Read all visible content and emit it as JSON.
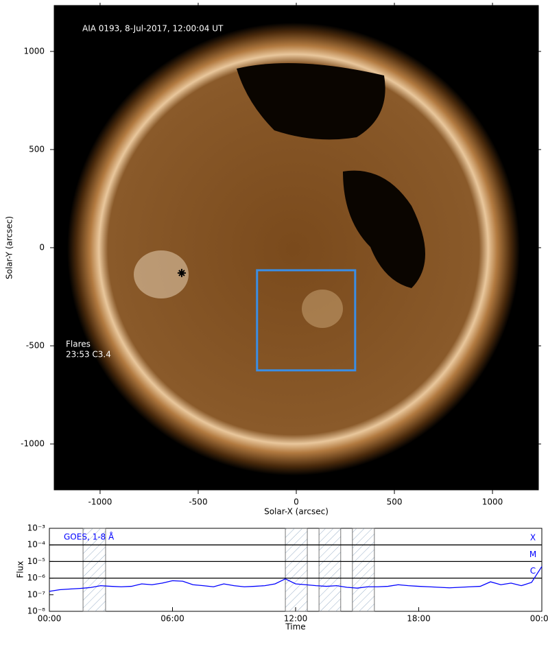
{
  "chart_data": [
    {
      "type": "image",
      "title": "AIA 0193, 8-Jul-2017, 12:00:04 UT",
      "xlabel": "Solar-X (arcsec)",
      "ylabel": "Solar-Y (arcsec)",
      "xlim": [
        -1234,
        1234
      ],
      "ylim": [
        -1234,
        1234
      ],
      "xticks": [
        -1000,
        -500,
        0,
        500,
        1000
      ],
      "yticks": [
        -1000,
        -500,
        0,
        500,
        1000
      ],
      "box": {
        "x": [
          -200,
          300
        ],
        "y": [
          -625,
          -115
        ],
        "color": "#3a8ee6"
      },
      "flare_location": {
        "x": -584,
        "y": -129
      },
      "annotation": [
        "Flares",
        "23:53 C3.4"
      ]
    },
    {
      "type": "line",
      "xlabel": "Time",
      "ylabel": "Flux",
      "log_y": true,
      "xlim": [
        0,
        24
      ],
      "ylim": [
        1e-08,
        0.001
      ],
      "xticks": [
        {
          "value": 0,
          "label": "00:00"
        },
        {
          "value": 6,
          "label": "06:00"
        },
        {
          "value": 12,
          "label": "12:00"
        },
        {
          "value": 18,
          "label": "18:00"
        },
        {
          "value": 24,
          "label": "00:00"
        }
      ],
      "yticks": [
        {
          "value": 1e-08,
          "label": "10⁻⁸"
        },
        {
          "value": 1e-07,
          "label": "10⁻⁷"
        },
        {
          "value": 1e-06,
          "label": "10⁻⁶"
        },
        {
          "value": 1e-05,
          "label": "10⁻⁵"
        },
        {
          "value": 0.0001,
          "label": "10⁻⁴"
        },
        {
          "value": 0.001,
          "label": "10⁻³"
        }
      ],
      "levels": [
        {
          "value": 0.0001,
          "label": "X"
        },
        {
          "value": 1e-05,
          "label": "M"
        },
        {
          "value": 1e-06,
          "label": "C"
        }
      ],
      "shaded_intervals": [
        [
          1.64,
          2.74
        ],
        [
          11.5,
          12.57
        ],
        [
          13.14,
          14.2
        ],
        [
          14.77,
          15.84
        ]
      ],
      "x": [
        0,
        0.5,
        1,
        1.5,
        2,
        2.5,
        3,
        3.5,
        4,
        4.5,
        5,
        5.5,
        6,
        6.5,
        7,
        7.5,
        8,
        8.5,
        9,
        9.5,
        10,
        10.5,
        11,
        11.5,
        12,
        12.5,
        13,
        13.5,
        14,
        14.5,
        15,
        15.5,
        16,
        16.5,
        17,
        17.5,
        18,
        18.5,
        19,
        19.5,
        20,
        20.5,
        21,
        21.5,
        22,
        22.5,
        23,
        23.5,
        24
      ],
      "series": [
        {
          "name": "GOES, 1-8 Å",
          "color": "#0000ff",
          "values": [
            1.6e-07,
            2e-07,
            2.2e-07,
            2.4e-07,
            2.7e-07,
            3.5e-07,
            3.2e-07,
            3e-07,
            3.2e-07,
            4.5e-07,
            4e-07,
            5e-07,
            7e-07,
            6.5e-07,
            4e-07,
            3.5e-07,
            3e-07,
            4.5e-07,
            3.5e-07,
            3e-07,
            3.2e-07,
            3.5e-07,
            4.5e-07,
            9e-07,
            4.5e-07,
            4e-07,
            3.5e-07,
            3.2e-07,
            3.5e-07,
            2.8e-07,
            2.5e-07,
            3e-07,
            3e-07,
            3.2e-07,
            4e-07,
            3.5e-07,
            3.2e-07,
            3e-07,
            2.8e-07,
            2.6e-07,
            2.8e-07,
            3e-07,
            3.2e-07,
            6e-07,
            4e-07,
            5e-07,
            3.5e-07,
            5.5e-07,
            5e-06
          ]
        }
      ]
    }
  ]
}
